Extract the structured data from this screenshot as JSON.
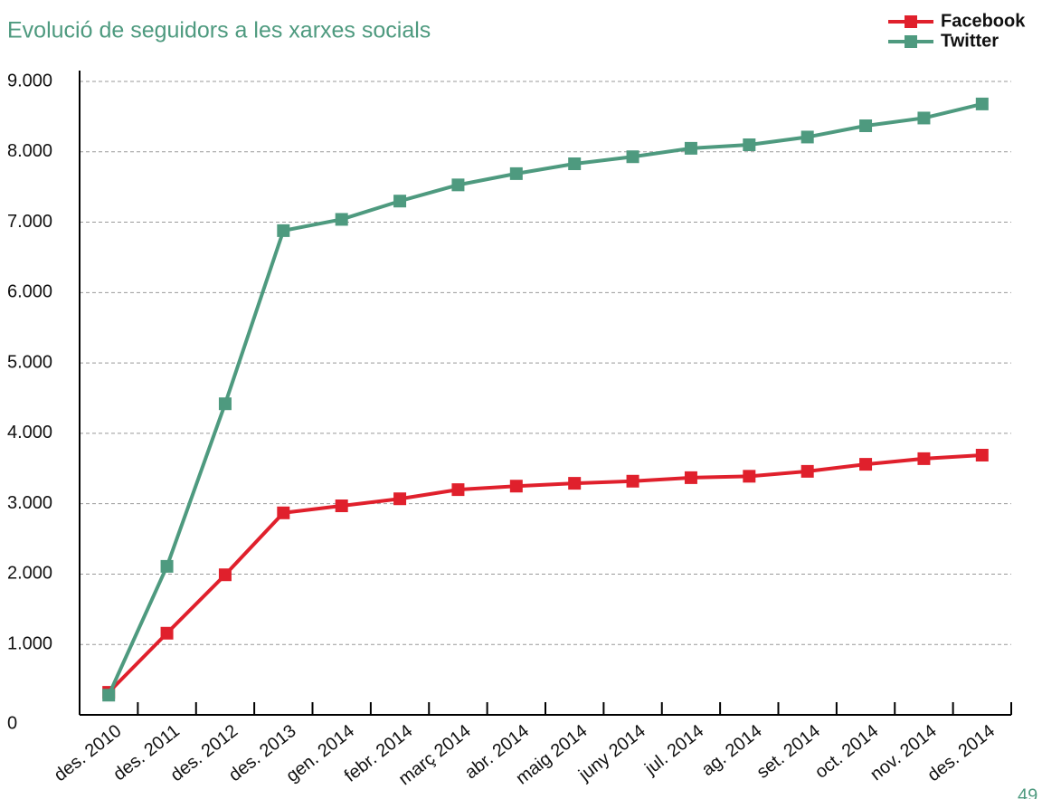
{
  "chart_data": {
    "type": "line",
    "title": "Evolució de seguidors a les xarxes socials",
    "categories": [
      "des. 2010",
      "des. 2011",
      "des. 2012",
      "des. 2013",
      "gen. 2014",
      "febr. 2014",
      "març 2014",
      "abr. 2014",
      "maig 2014",
      "juny 2014",
      "jul. 2014",
      "ag. 2014",
      "set. 2014",
      "oct. 2014",
      "nov. 2014",
      "des. 2014"
    ],
    "series": [
      {
        "name": "Facebook",
        "color": "#e0202c",
        "values": [
          320,
          1160,
          1990,
          2870,
          2970,
          3070,
          3200,
          3250,
          3290,
          3320,
          3370,
          3390,
          3460,
          3560,
          3640,
          3690
        ]
      },
      {
        "name": "Twitter",
        "color": "#4e9a7f",
        "values": [
          280,
          2110,
          4420,
          6880,
          7040,
          7300,
          7530,
          7690,
          7830,
          7930,
          8050,
          8100,
          8210,
          8370,
          8480,
          8680
        ]
      }
    ],
    "ylim": [
      0,
      9000
    ],
    "yticks": [
      0,
      {
        "value": 1000,
        "label": "1.000"
      },
      {
        "value": 2000,
        "label": "2.000"
      },
      {
        "value": 3000,
        "label": "3.000"
      },
      {
        "value": 4000,
        "label": "4.000"
      },
      {
        "value": 5000,
        "label": "5.000"
      },
      {
        "value": 6000,
        "label": "6.000"
      },
      {
        "value": 7000,
        "label": "7.000"
      },
      {
        "value": 8000,
        "label": "8.000"
      },
      {
        "value": 9000,
        "label": "9.000"
      }
    ],
    "grid": true,
    "legend": "top-right",
    "page_number": "49"
  }
}
